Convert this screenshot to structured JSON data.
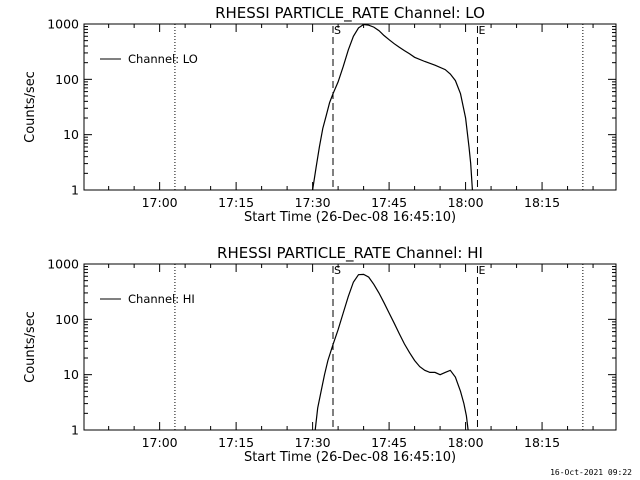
{
  "chart_data": [
    {
      "type": "line",
      "title": "RHESSI PARTICLE_RATE Channel: LO",
      "xlabel": "Start Time (26-Dec-08 16:45:10)",
      "ylabel": "Counts/sec",
      "yscale": "log",
      "ylim": [
        1,
        1000
      ],
      "xlim": [
        "16:45:10",
        "18:29:30"
      ],
      "x_ticks": [
        "17:00",
        "17:15",
        "17:30",
        "17:45",
        "18:00",
        "18:15"
      ],
      "y_ticks": [
        "1",
        "10",
        "100",
        "1000"
      ],
      "legend": "top-left",
      "grid": false,
      "markers": [
        {
          "time": "17:34:00",
          "label": "S",
          "style": "dashed"
        },
        {
          "time": "18:02:20",
          "label": "E",
          "style": "dashed"
        }
      ],
      "dotted_lines": [
        "17:03:00",
        "18:23:00"
      ],
      "series": [
        {
          "name": "Channel: LO",
          "x": [
            "17:30:00",
            "17:30:40",
            "17:31:20",
            "17:32:00",
            "17:32:40",
            "17:33:20",
            "17:34:00",
            "17:35:00",
            "17:36:00",
            "17:37:00",
            "17:38:00",
            "17:39:00",
            "17:40:00",
            "17:41:00",
            "17:42:00",
            "17:43:00",
            "17:44:00",
            "17:45:00",
            "17:46:00",
            "17:47:00",
            "17:48:00",
            "17:49:00",
            "17:50:00",
            "17:52:00",
            "17:54:00",
            "17:56:00",
            "17:57:00",
            "17:58:00",
            "17:59:00",
            "18:00:00",
            "18:00:40",
            "18:01:00",
            "18:01:10",
            "18:01:20"
          ],
          "y": [
            1,
            2.5,
            6,
            13,
            22,
            38,
            55,
            90,
            170,
            340,
            600,
            850,
            980,
            950,
            880,
            760,
            620,
            520,
            440,
            380,
            330,
            290,
            250,
            210,
            180,
            150,
            125,
            95,
            55,
            20,
            6,
            3,
            1.8,
            1
          ]
        }
      ]
    },
    {
      "type": "line",
      "title": "RHESSI PARTICLE_RATE Channel: HI",
      "xlabel": "Start Time (26-Dec-08 16:45:10)",
      "ylabel": "Counts/sec",
      "yscale": "log",
      "ylim": [
        1,
        1000
      ],
      "xlim": [
        "16:45:10",
        "18:29:30"
      ],
      "x_ticks": [
        "17:00",
        "17:15",
        "17:30",
        "17:45",
        "18:00",
        "18:15"
      ],
      "y_ticks": [
        "1",
        "10",
        "100",
        "1000"
      ],
      "legend": "top-left",
      "grid": false,
      "markers": [
        {
          "time": "17:34:00",
          "label": "S",
          "style": "dashed"
        },
        {
          "time": "18:02:20",
          "label": "E",
          "style": "dashed"
        }
      ],
      "dotted_lines": [
        "17:03:00",
        "18:23:00"
      ],
      "series": [
        {
          "name": "Channel: HI",
          "x": [
            "17:30:30",
            "17:31:00",
            "17:31:40",
            "17:32:20",
            "17:33:00",
            "17:34:00",
            "17:35:00",
            "17:36:00",
            "17:37:00",
            "17:38:00",
            "17:39:00",
            "17:40:00",
            "17:41:00",
            "17:42:00",
            "17:43:00",
            "17:44:00",
            "17:45:00",
            "17:46:00",
            "17:47:00",
            "17:48:00",
            "17:49:00",
            "17:50:00",
            "17:51:00",
            "17:52:00",
            "17:53:00",
            "17:54:00",
            "17:55:00",
            "17:56:00",
            "17:57:00",
            "17:58:00",
            "17:59:00",
            "17:59:40",
            "18:00:10",
            "18:00:30"
          ],
          "y": [
            1,
            2.5,
            5,
            10,
            18,
            35,
            65,
            130,
            260,
            470,
            640,
            650,
            580,
            430,
            300,
            200,
            130,
            85,
            55,
            36,
            25,
            18,
            14,
            12,
            11,
            11,
            10,
            11,
            12,
            9,
            5,
            3,
            1.8,
            1
          ]
        }
      ]
    }
  ],
  "footer": {
    "date": "16-Oct-2021 09:22"
  }
}
